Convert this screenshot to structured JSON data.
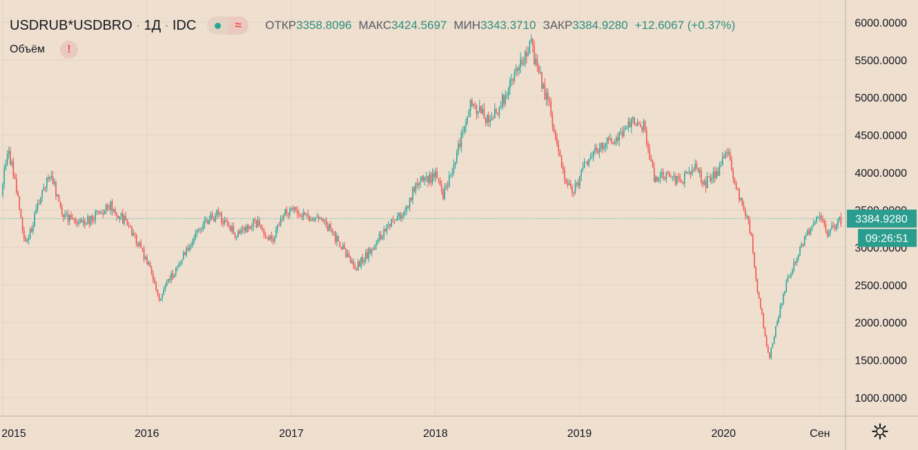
{
  "legend": {
    "symbol": "USDRUB*USDBRO",
    "interval": "1Д",
    "exchange": "IDC",
    "separator": "·",
    "approx_symbol": "≈",
    "open_label": "ОТКР",
    "open": "3358.8096",
    "high_label": "МАКС",
    "high": "3424.5697",
    "low_label": "МИН",
    "low": "3343.3710",
    "close_label": "ЗАКР",
    "close": "3384.9280",
    "change": "+12.6067 (+0.37%)"
  },
  "volume": {
    "label": "Объём",
    "warning": "!"
  },
  "price_badge": {
    "price": "3384.9280",
    "countdown": "09:26:51"
  },
  "settings": {
    "icon": "gear-icon"
  },
  "colors": {
    "background": "#efdfcf",
    "up": "#26a69a",
    "down": "#ef5350",
    "grid": "#e3d3c3",
    "badge": "#2a9d8f"
  },
  "chart_data": {
    "type": "candlestick",
    "y_axis_ticks": [
      "6000.0000",
      "5500.0000",
      "5000.0000",
      "4500.0000",
      "4000.0000",
      "3500.0000",
      "3000.0000",
      "2500.0000",
      "2000.0000",
      "1500.0000",
      "1000.0000"
    ],
    "ylim": [
      750,
      6300
    ],
    "x_axis_ticks": [
      "2015",
      "2016",
      "2017",
      "2018",
      "2019",
      "2020",
      "Сен"
    ],
    "xlim": [
      "2014-12-25",
      "2020-11-05"
    ],
    "last_price": 3384.928,
    "series_path": [
      [
        "2014-12-25",
        3700
      ],
      [
        "2015-01-15",
        4300
      ],
      [
        "2015-02-01",
        3900
      ],
      [
        "2015-03-01",
        3000
      ],
      [
        "2015-04-01",
        3600
      ],
      [
        "2015-05-01",
        4000
      ],
      [
        "2015-06-01",
        3450
      ],
      [
        "2015-07-15",
        3300
      ],
      [
        "2015-09-01",
        3450
      ],
      [
        "2015-10-01",
        3550
      ],
      [
        "2015-11-15",
        3300
      ],
      [
        "2015-12-15",
        3000
      ],
      [
        "2016-01-10",
        2700
      ],
      [
        "2016-02-01",
        2300
      ],
      [
        "2016-03-01",
        2600
      ],
      [
        "2016-04-15",
        3000
      ],
      [
        "2016-05-15",
        3300
      ],
      [
        "2016-07-01",
        3450
      ],
      [
        "2016-08-15",
        3150
      ],
      [
        "2016-10-01",
        3350
      ],
      [
        "2016-11-15",
        3100
      ],
      [
        "2016-12-10",
        3450
      ],
      [
        "2017-01-01",
        3500
      ],
      [
        "2017-02-15",
        3400
      ],
      [
        "2017-04-01",
        3300
      ],
      [
        "2017-05-15",
        2950
      ],
      [
        "2017-06-15",
        2750
      ],
      [
        "2017-07-20",
        2950
      ],
      [
        "2017-09-01",
        3300
      ],
      [
        "2017-10-15",
        3500
      ],
      [
        "2017-11-15",
        3850
      ],
      [
        "2018-01-01",
        3950
      ],
      [
        "2018-01-20",
        3700
      ],
      [
        "2018-02-15",
        4100
      ],
      [
        "2018-03-15",
        4600
      ],
      [
        "2018-04-01",
        4900
      ],
      [
        "2018-05-15",
        4700
      ],
      [
        "2018-06-15",
        4900
      ],
      [
        "2018-07-15",
        5300
      ],
      [
        "2018-08-15",
        5500
      ],
      [
        "2018-09-01",
        5700
      ],
      [
        "2018-09-20",
        5300
      ],
      [
        "2018-10-15",
        4900
      ],
      [
        "2018-11-15",
        4100
      ],
      [
        "2018-12-15",
        3700
      ],
      [
        "2019-01-15",
        4100
      ],
      [
        "2019-03-01",
        4400
      ],
      [
        "2019-04-15",
        4500
      ],
      [
        "2019-05-15",
        4750
      ],
      [
        "2019-06-15",
        4600
      ],
      [
        "2019-07-10",
        3900
      ],
      [
        "2019-08-15",
        4000
      ],
      [
        "2019-09-15",
        3850
      ],
      [
        "2019-10-15",
        4100
      ],
      [
        "2019-11-15",
        3850
      ],
      [
        "2019-12-15",
        4000
      ],
      [
        "2020-01-10",
        4250
      ],
      [
        "2020-01-25",
        4000
      ],
      [
        "2020-02-15",
        3600
      ],
      [
        "2020-03-10",
        3200
      ],
      [
        "2020-03-25",
        2500
      ],
      [
        "2020-04-10",
        2000
      ],
      [
        "2020-04-25",
        1500
      ],
      [
        "2020-05-15",
        2000
      ],
      [
        "2020-06-01",
        2400
      ],
      [
        "2020-06-20",
        2700
      ],
      [
        "2020-07-15",
        3000
      ],
      [
        "2020-08-10",
        3300
      ],
      [
        "2020-09-01",
        3450
      ],
      [
        "2020-09-20",
        3150
      ],
      [
        "2020-10-10",
        3300
      ],
      [
        "2020-10-28",
        3385
      ]
    ],
    "grid": true
  }
}
